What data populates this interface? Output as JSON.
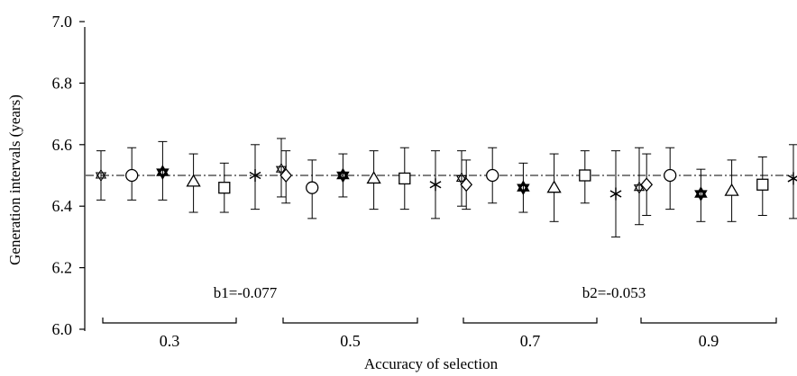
{
  "chart_data": {
    "type": "scatter",
    "xlabel": "Accuracy of selection",
    "ylabel": "Generation intervals (years)",
    "ylim": [
      6.0,
      7.0
    ],
    "yticks": [
      "6.0",
      "6.2",
      "6.4",
      "6.6",
      "6.8",
      "7.0"
    ],
    "reference_line": 6.5,
    "groups": [
      "0.3",
      "0.5",
      "0.7",
      "0.9"
    ],
    "series": [
      {
        "marker": "star6-open",
        "values": [
          6.5,
          6.52,
          6.49,
          6.46
        ],
        "lower": [
          6.42,
          6.43,
          6.4,
          6.34
        ],
        "upper": [
          6.58,
          6.62,
          6.58,
          6.59
        ]
      },
      {
        "marker": "circle",
        "values": [
          6.5,
          6.46,
          6.5,
          6.5
        ],
        "lower": [
          6.42,
          6.36,
          6.41,
          6.39
        ],
        "upper": [
          6.59,
          6.55,
          6.59,
          6.59
        ]
      },
      {
        "marker": "star6-bold",
        "values": [
          6.51,
          6.5,
          6.46,
          6.44
        ],
        "lower": [
          6.42,
          6.43,
          6.38,
          6.35
        ],
        "upper": [
          6.61,
          6.57,
          6.54,
          6.52
        ]
      },
      {
        "marker": "triangle",
        "values": [
          6.48,
          6.49,
          6.46,
          6.45
        ],
        "lower": [
          6.38,
          6.39,
          6.35,
          6.35
        ],
        "upper": [
          6.57,
          6.58,
          6.57,
          6.55
        ]
      },
      {
        "marker": "square",
        "values": [
          6.46,
          6.49,
          6.5,
          6.47
        ],
        "lower": [
          6.38,
          6.39,
          6.41,
          6.37
        ],
        "upper": [
          6.54,
          6.59,
          6.58,
          6.56
        ]
      },
      {
        "marker": "asterisk",
        "values": [
          6.5,
          6.47,
          6.44,
          6.49
        ],
        "lower": [
          6.39,
          6.36,
          6.3,
          6.36
        ],
        "upper": [
          6.6,
          6.58,
          6.58,
          6.6
        ]
      },
      {
        "marker": "diamond",
        "values": [
          6.5,
          6.47,
          6.47,
          6.44
        ],
        "lower": [
          6.41,
          6.39,
          6.37,
          6.34
        ],
        "upper": [
          6.58,
          6.55,
          6.57,
          6.54
        ]
      }
    ],
    "annotations": [
      "b1=-0.077",
      "b2=-0.053"
    ],
    "grid": false,
    "legend": "none"
  }
}
